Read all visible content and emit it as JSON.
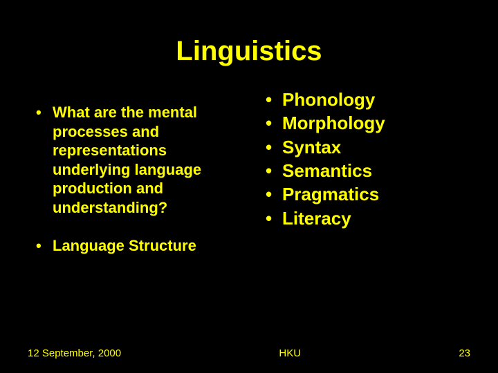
{
  "background_color": "#000000",
  "text_color": "#ffff00",
  "title": "Linguistics",
  "title_fontsize": 40,
  "left_column": {
    "items": [
      "What are the mental processes and representations underlying language production and understanding?",
      "Language Structure"
    ],
    "fontsize": 22,
    "font_weight": "bold"
  },
  "right_column": {
    "items": [
      "Phonology",
      "Morphology",
      "Syntax",
      "Semantics",
      "Pragmatics",
      "Literacy"
    ],
    "fontsize": 26,
    "font_weight": "bold"
  },
  "footer": {
    "date": "12 September, 2000",
    "center": "HKU",
    "page_number": "23",
    "fontsize": 15
  }
}
